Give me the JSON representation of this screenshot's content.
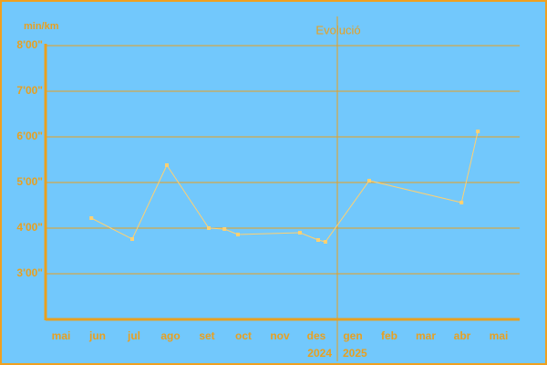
{
  "chart_data": {
    "type": "line",
    "title": "Evolució",
    "y_label": "min/km",
    "categories": [
      "mai",
      "jun",
      "jul",
      "ago",
      "set",
      "oct",
      "nov",
      "des",
      "gen",
      "feb",
      "mar",
      "abr",
      "mai"
    ],
    "xlim": [
      -0.425,
      12.575
    ],
    "ylim": [
      2,
      8
    ],
    "yticks": [
      {
        "value": 3,
        "label": "3'00\""
      },
      {
        "value": 4,
        "label": "4'00\""
      },
      {
        "value": 5,
        "label": "5'00\""
      },
      {
        "value": 6,
        "label": "6'00\""
      },
      {
        "value": 7,
        "label": "7'00\""
      },
      {
        "value": 8,
        "label": "8'00\""
      }
    ],
    "grid": true,
    "years": [
      "2024",
      "2025"
    ],
    "year_divider": 7.575,
    "series": [
      {
        "color": "#ffd070",
        "x": [
          0.83,
          1.95,
          2.9,
          4.05,
          4.48,
          4.85,
          6.55,
          7.05,
          7.25,
          8.45,
          10.98,
          11.43
        ],
        "values": [
          4.22,
          3.76,
          5.38,
          4.0,
          3.98,
          3.86,
          3.9,
          3.74,
          3.7,
          5.04,
          4.56,
          6.12
        ]
      }
    ]
  }
}
